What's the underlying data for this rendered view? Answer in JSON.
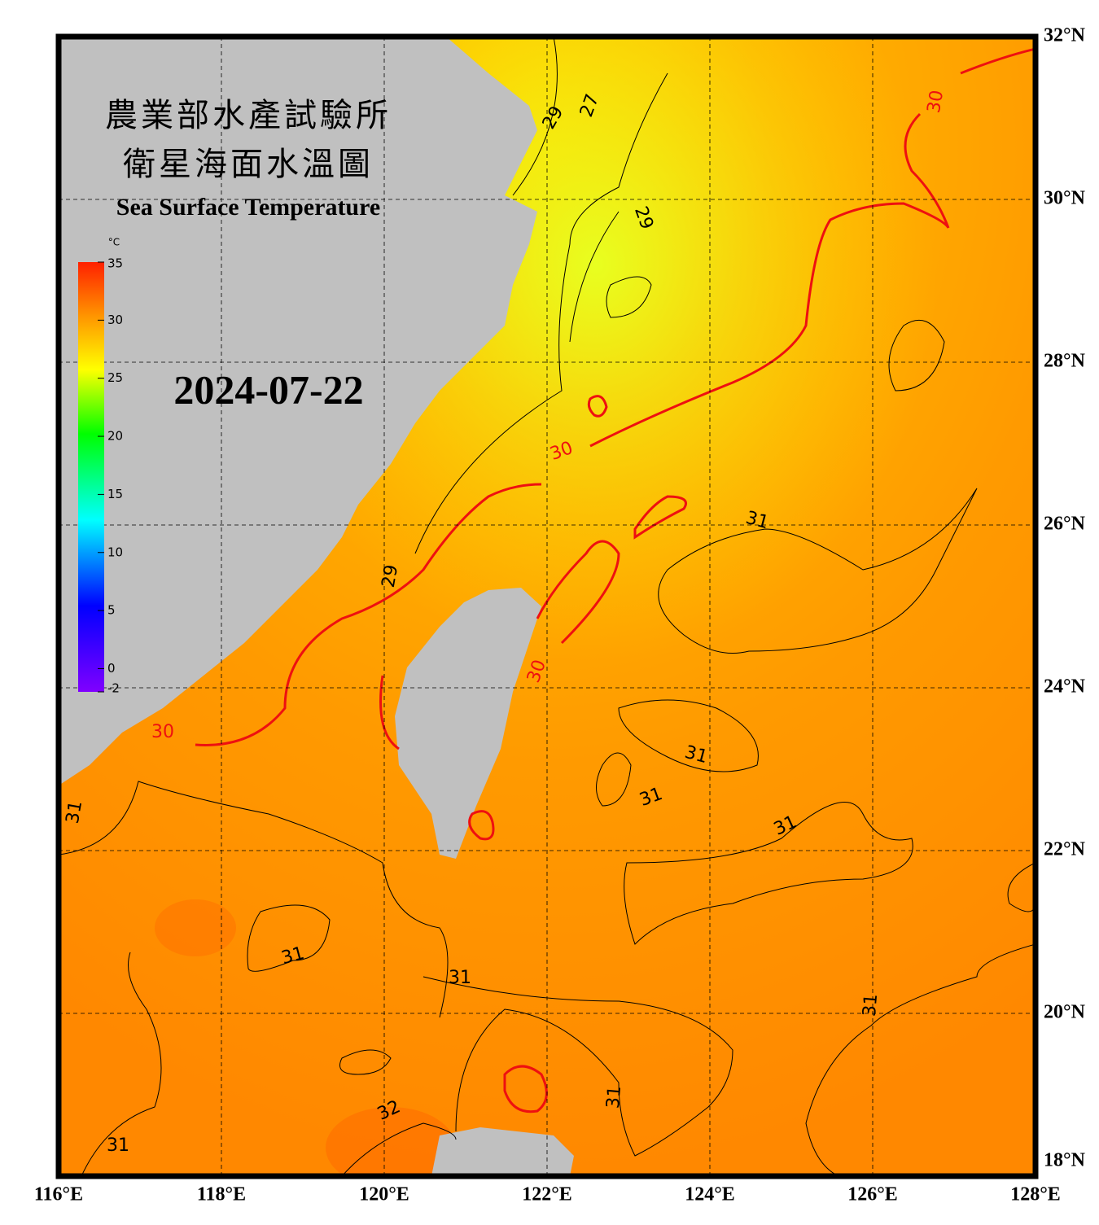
{
  "header": {
    "title_zh": "農業部水產試驗所",
    "subtitle_zh": "衛星海面水溫圖",
    "title_en": "Sea Surface Temperature",
    "date": "2024-07-22"
  },
  "colorbar": {
    "unit": "°C",
    "lim": [
      -2,
      35
    ],
    "ticks": [
      35,
      30,
      25,
      20,
      15,
      10,
      5,
      0,
      -2
    ]
  },
  "map": {
    "xlim": [
      116,
      128
    ],
    "ylim": [
      18,
      32
    ],
    "xticks": [
      {
        "value": 116,
        "label": "116°E"
      },
      {
        "value": 118,
        "label": "118°E"
      },
      {
        "value": 120,
        "label": "120°E"
      },
      {
        "value": 122,
        "label": "122°E"
      },
      {
        "value": 124,
        "label": "124°E"
      },
      {
        "value": 126,
        "label": "126°E"
      },
      {
        "value": 128,
        "label": "128°E"
      }
    ],
    "yticks": [
      {
        "value": 18,
        "label": "18°N"
      },
      {
        "value": 20,
        "label": "20°N"
      },
      {
        "value": 22,
        "label": "22°N"
      },
      {
        "value": 24,
        "label": "24°N"
      },
      {
        "value": 26,
        "label": "26°N"
      },
      {
        "value": 28,
        "label": "28°N"
      },
      {
        "value": 30,
        "label": "30°N"
      },
      {
        "value": 32,
        "label": "32°N"
      }
    ],
    "contour_labels": [
      29,
      27,
      29,
      30,
      30,
      30,
      30,
      31,
      31,
      31,
      31,
      31,
      31,
      31,
      31,
      31,
      32,
      31,
      29
    ]
  }
}
